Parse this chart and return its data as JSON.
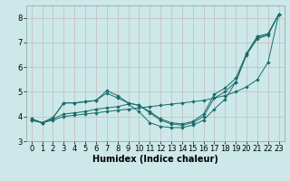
{
  "xlabel": "Humidex (Indice chaleur)",
  "ylabel": "",
  "background_color": "#cce8e8",
  "grid_color": "#c8b8b8",
  "line_color": "#1a6b6b",
  "xlim": [
    -0.5,
    23.5
  ],
  "ylim": [
    3.0,
    8.5
  ],
  "yticks": [
    3,
    4,
    5,
    6,
    7,
    8
  ],
  "xticks": [
    0,
    1,
    2,
    3,
    4,
    5,
    6,
    7,
    8,
    9,
    10,
    11,
    12,
    13,
    14,
    15,
    16,
    17,
    18,
    19,
    20,
    21,
    22,
    23
  ],
  "line1_x": [
    0,
    1,
    2,
    3,
    4,
    5,
    6,
    7,
    8,
    9,
    10,
    11,
    12,
    13,
    14,
    15,
    16,
    17,
    18,
    19,
    20,
    21,
    22,
    23
  ],
  "line1_y": [
    3.85,
    3.75,
    3.85,
    4.0,
    4.05,
    4.1,
    4.15,
    4.2,
    4.25,
    4.3,
    4.35,
    4.4,
    4.45,
    4.5,
    4.55,
    4.6,
    4.65,
    4.75,
    4.85,
    5.0,
    5.2,
    5.5,
    6.2,
    8.15
  ],
  "line2_x": [
    0,
    1,
    2,
    3,
    4,
    5,
    6,
    7,
    8,
    9,
    10,
    11,
    12,
    13,
    14,
    15,
    16,
    17,
    18,
    19,
    20,
    21,
    22,
    23
  ],
  "line2_y": [
    3.85,
    3.75,
    3.9,
    4.1,
    4.15,
    4.2,
    4.3,
    4.35,
    4.4,
    4.5,
    4.2,
    3.75,
    3.6,
    3.55,
    3.55,
    3.65,
    3.85,
    4.3,
    4.7,
    5.4,
    6.55,
    7.25,
    7.35,
    8.15
  ],
  "line3_x": [
    0,
    1,
    2,
    3,
    4,
    5,
    6,
    7,
    8,
    9,
    10,
    11,
    12,
    13,
    14,
    15,
    16,
    17,
    18,
    19,
    20,
    21,
    22,
    23
  ],
  "line3_y": [
    3.9,
    3.75,
    3.95,
    4.55,
    4.55,
    4.6,
    4.65,
    5.05,
    4.85,
    4.55,
    4.45,
    4.2,
    3.9,
    3.75,
    3.7,
    3.8,
    4.1,
    4.9,
    5.15,
    5.55,
    6.55,
    7.2,
    7.35,
    8.15
  ],
  "line4_x": [
    0,
    1,
    2,
    3,
    4,
    5,
    6,
    7,
    8,
    9,
    10,
    11,
    12,
    13,
    14,
    15,
    16,
    17,
    18,
    19,
    20,
    21,
    22,
    23
  ],
  "line4_y": [
    3.9,
    3.75,
    3.95,
    4.55,
    4.55,
    4.6,
    4.65,
    4.95,
    4.75,
    4.55,
    4.45,
    4.15,
    3.85,
    3.7,
    3.65,
    3.75,
    4.0,
    4.75,
    5.0,
    5.4,
    6.5,
    7.15,
    7.3,
    8.15
  ],
  "xlabel_fontsize": 7,
  "tick_fontsize": 6,
  "marker_size": 2.2,
  "linewidth": 0.7
}
